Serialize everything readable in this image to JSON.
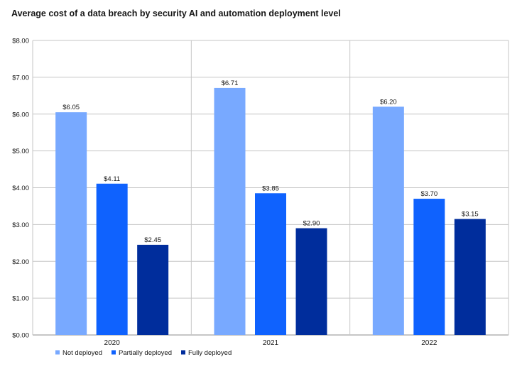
{
  "chart_data": {
    "type": "bar",
    "title": "Average cost of a data breach by security AI and automation deployment level",
    "categories": [
      "2020",
      "2021",
      "2022"
    ],
    "series": [
      {
        "name": "Not deployed",
        "values": [
          6.05,
          6.71,
          6.2
        ],
        "labels": [
          "$6.05",
          "$6.71",
          "$6.20"
        ],
        "color": "#78a9ff"
      },
      {
        "name": "Partially deployed",
        "values": [
          4.11,
          3.85,
          3.7
        ],
        "labels": [
          "$4.11",
          "$3.85",
          "$3.70"
        ],
        "color": "#0f62fe"
      },
      {
        "name": "Fully deployed",
        "values": [
          2.45,
          2.9,
          3.15
        ],
        "labels": [
          "$2.45",
          "$2.90",
          "$3.15"
        ],
        "color": "#002d9c"
      }
    ],
    "y_ticks": [
      "$0.00",
      "$1.00",
      "$2.00",
      "$3.00",
      "$4.00",
      "$5.00",
      "$6.00",
      "$7.00",
      "$8.00"
    ],
    "ylim": [
      0,
      8
    ],
    "grid": true,
    "legend_position": "bottom-left"
  }
}
